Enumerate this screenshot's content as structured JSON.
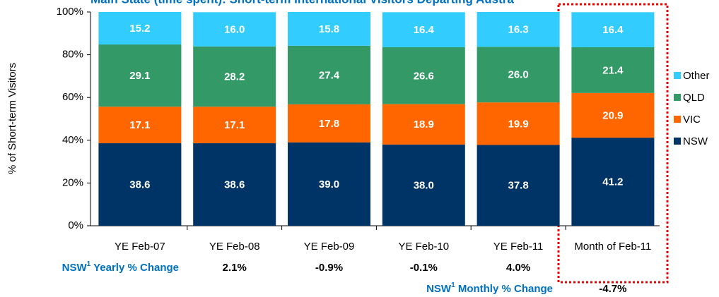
{
  "chart_data": {
    "type": "stacked_bar",
    "title": "Main State (time spent): Short-term International Visitors Departing Austra",
    "y_label": "% of Short-term Visitors",
    "categories": [
      "YE Feb-07",
      "YE Feb-08",
      "YE Feb-09",
      "YE Feb-10",
      "YE Feb-11",
      "Month of Feb-11"
    ],
    "series": [
      {
        "name": "NSW",
        "color": "#003366",
        "values": [
          38.6,
          38.6,
          39.0,
          38.0,
          37.8,
          41.2
        ],
        "value_labels": [
          "38.6",
          "38.6",
          "39.0",
          "38.0",
          "37.8",
          "41.2"
        ]
      },
      {
        "name": "VIC",
        "color": "#ff6600",
        "values": [
          17.1,
          17.1,
          17.8,
          18.9,
          19.9,
          20.9
        ]
      },
      {
        "name": "QLD",
        "color": "#339966",
        "values": [
          29.1,
          28.2,
          27.4,
          26.6,
          26.0,
          21.4
        ],
        "value_labels": [
          "29.1",
          "28.2",
          "27.4",
          "26.6",
          "26.0",
          "21.4"
        ]
      },
      {
        "name": "Other",
        "color": "#33ccff",
        "values": [
          15.2,
          16.0,
          15.8,
          16.4,
          16.3,
          16.4
        ],
        "value_labels": [
          "15.2",
          "16.0",
          "15.8",
          "16.4",
          "16.3",
          "16.4"
        ]
      }
    ],
    "ylim": [
      0,
      100
    ],
    "yticks": [
      {
        "value": 0,
        "label": "0%"
      },
      {
        "value": 20,
        "label": "20%"
      },
      {
        "value": 40,
        "label": "40%"
      },
      {
        "value": 60,
        "label": "60%"
      },
      {
        "value": 80,
        "label": "80%"
      },
      {
        "value": 100,
        "label": "100%"
      }
    ],
    "legend": "right",
    "yearly_change": {
      "label": "NSW",
      "sup": "1",
      "text": " Yearly % Change",
      "values": [
        2.1,
        -0.9,
        -0.1,
        4.0
      ],
      "value_labels": [
        "2.1%",
        "-0.9%",
        "-0.1%",
        "4.0%"
      ]
    },
    "monthly_change": {
      "label": "NSW",
      "sup": "1",
      "text": " Monthly % Change",
      "values": [
        -4.7
      ],
      "value_labels": [
        "-4.7%"
      ]
    }
  }
}
